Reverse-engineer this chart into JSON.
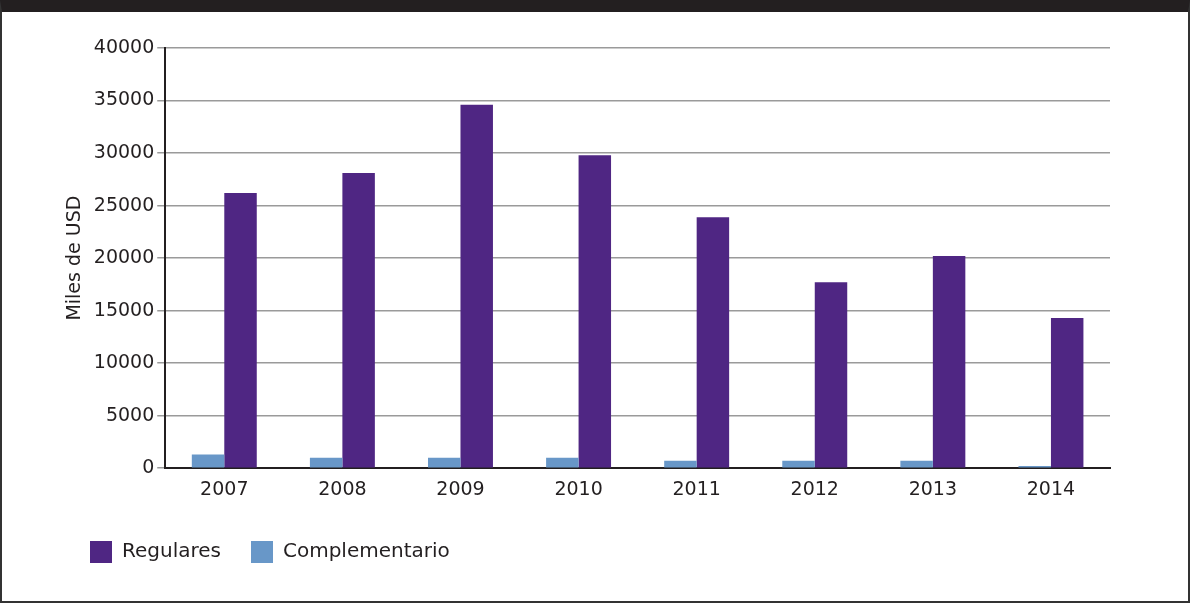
{
  "chart_data": {
    "type": "bar",
    "ylabel": "Miles de USD",
    "categories": [
      "2007",
      "2008",
      "2009",
      "2010",
      "2011",
      "2012",
      "2013",
      "2014"
    ],
    "series": [
      {
        "name": "Regulares",
        "color": "#4f2683",
        "values": [
          26200,
          28100,
          34600,
          29800,
          23900,
          17700,
          20200,
          14300
        ]
      },
      {
        "name": "Complementario",
        "color": "#6897c8",
        "values": [
          1300,
          1000,
          1000,
          1000,
          700,
          700,
          700,
          200
        ]
      }
    ],
    "ylim": [
      0,
      40000
    ],
    "yticks": [
      0,
      5000,
      10000,
      15000,
      20000,
      25000,
      30000,
      35000,
      40000
    ],
    "grid": "y",
    "legend": "bottom"
  }
}
